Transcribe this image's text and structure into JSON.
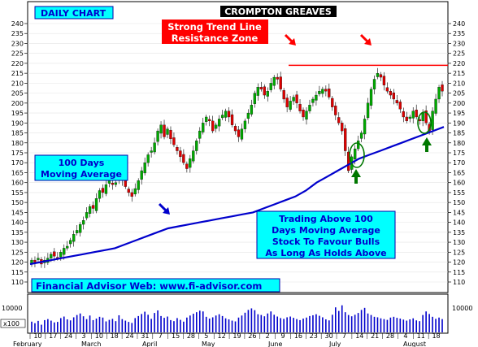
{
  "header": {
    "tag_label": "DAILY CHART",
    "title": "CROMPTON GREAVES"
  },
  "annotations": {
    "resistance_line1": "Strong Trend Line",
    "resistance_line2": "Resistance Zone",
    "ma_line1": "100 Days",
    "ma_line2": "Moving Average",
    "trading_line1": "Trading Above 100",
    "trading_line2": "Days Moving Average",
    "trading_line3": "Stock To Favour Bulls",
    "trading_line4": "As Long As Holds Above",
    "website": "Financial Advisor Web: www.fi-advisor.com"
  },
  "colors": {
    "up_candle": "#00aa00",
    "down_candle": "#dd0000",
    "moving_average": "#0000cc",
    "resistance_line": "#ff0000",
    "volume_bar": "#0000cc",
    "label_box_bg": "#00ffff",
    "title_box_bg": "#000000",
    "resistance_box_bg": "#ff0000",
    "arrow_red": "#ff0000",
    "arrow_blue": "#0000cc",
    "arrow_green": "#007700"
  },
  "chart_data": {
    "type": "candlestick",
    "title": "CROMPTON GREAVES",
    "price_axis": {
      "ylim": [
        105,
        245
      ],
      "ticks": [
        110,
        115,
        120,
        125,
        130,
        135,
        140,
        145,
        150,
        155,
        160,
        165,
        170,
        175,
        180,
        185,
        190,
        195,
        200,
        205,
        210,
        215,
        220,
        225,
        230,
        235,
        240
      ],
      "side": "both"
    },
    "volume_axis": {
      "tick_label": "10000",
      "unit_label": "x100",
      "ylim": [
        0,
        14000
      ]
    },
    "x_axis": {
      "day_ticks": [
        "10",
        "17",
        "24",
        "3",
        "10",
        "18",
        "24",
        "31",
        "7",
        "15",
        "28",
        "5",
        "12",
        "19",
        "26",
        "2",
        "9",
        "16",
        "23",
        "30",
        "7",
        "14",
        "21",
        "28",
        "4",
        "11",
        "18"
      ],
      "months": [
        "February",
        "March",
        "April",
        "May",
        "June",
        "July",
        "August"
      ]
    },
    "resistance_level": 219,
    "series": [
      {
        "name": "100 Days Moving Average",
        "values": [
          119,
          120,
          121,
          122,
          123,
          124,
          125,
          126,
          127,
          129,
          131,
          133,
          135,
          137,
          138,
          139,
          140,
          141,
          142,
          143,
          144,
          145,
          147,
          149,
          151,
          153,
          156,
          160,
          163,
          166,
          169,
          172,
          174,
          176,
          178,
          180,
          182,
          184,
          186,
          188
        ]
      }
    ],
    "close": [
      121,
      120,
      122,
      119,
      121,
      122,
      124,
      123,
      122,
      125,
      127,
      128,
      131,
      134,
      136,
      139,
      141,
      145,
      148,
      147,
      152,
      156,
      155,
      159,
      161,
      159,
      160,
      163,
      161,
      158,
      155,
      153,
      157,
      161,
      166,
      170,
      174,
      176,
      180,
      186,
      189,
      183,
      187,
      182,
      179,
      176,
      173,
      170,
      167,
      172,
      176,
      181,
      186,
      190,
      193,
      191,
      186,
      189,
      192,
      194,
      196,
      193,
      189,
      186,
      183,
      187,
      191,
      195,
      199,
      205,
      208,
      207,
      204,
      206,
      210,
      213,
      212,
      207,
      202,
      198,
      201,
      203,
      200,
      196,
      193,
      196,
      199,
      202,
      204,
      206,
      207,
      206,
      203,
      198,
      194,
      190,
      186,
      176,
      166,
      173,
      177,
      181,
      185,
      192,
      200,
      207,
      212,
      215,
      213,
      209,
      206,
      204,
      202,
      200,
      197,
      193,
      191,
      193,
      196,
      193,
      191,
      195,
      190,
      186,
      196,
      202,
      208,
      206
    ],
    "volume_approx": [
      4200,
      3600,
      4500,
      3000,
      4800,
      5200,
      4600,
      3900,
      4100,
      5600,
      6200,
      5100,
      4700,
      5900,
      6800,
      7400,
      6300,
      5200,
      6600,
      4800,
      5400,
      6100,
      5800,
      4300,
      4900,
      5300,
      4400,
      6700,
      5200,
      4600,
      4100,
      3700,
      5600,
      6400,
      7200,
      8100,
      6900,
      5300,
      7600,
      8600,
      6400,
      5700,
      6200,
      4800,
      4400,
      5600,
      4900,
      4200,
      5800,
      6600,
      7300,
      7900,
      8500,
      8200,
      6100,
      5400,
      5900,
      6600,
      7100,
      6400,
      5500,
      5100,
      4600,
      4300,
      5800,
      6600,
      7700,
      8800,
      9400,
      8700,
      7100,
      6800,
      6300,
      7400,
      8200,
      6900,
      6200,
      5600,
      5300,
      5900,
      6200,
      5700,
      5200,
      4800,
      5400,
      5800,
      6400,
      6700,
      7100,
      6500,
      5900,
      5100,
      4700,
      6900,
      9800,
      8400,
      10600,
      7900,
      6800,
      6300,
      6900,
      7600,
      8800,
      9600,
      7400,
      6800,
      6100,
      5900,
      5500,
      5200,
      4900,
      5800,
      6100,
      5700,
      5400,
      5000,
      4600,
      5100,
      5500,
      4700,
      4400,
      6800,
      8200,
      7200,
      6100,
      5300,
      5800,
      5200
    ]
  }
}
